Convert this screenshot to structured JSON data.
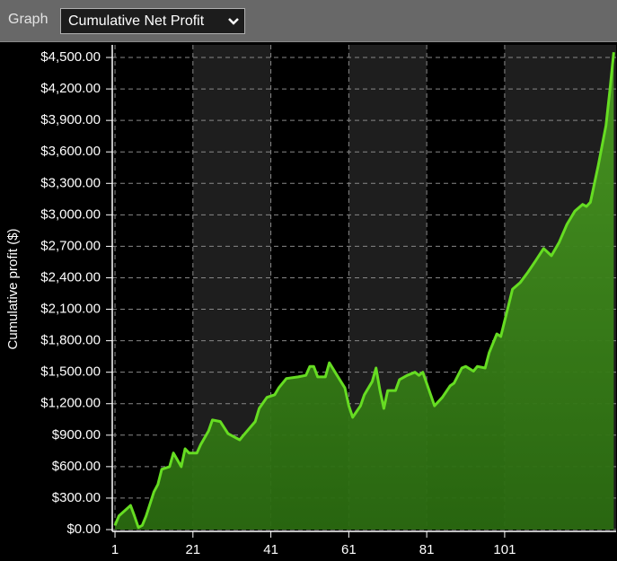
{
  "controls": {
    "label": "Graph",
    "selected": "Cumulative Net Profit"
  },
  "chart_data": {
    "type": "area",
    "y_label": "Cumulative profit ($)",
    "x": [
      1,
      2,
      5,
      6,
      7,
      8,
      9,
      11,
      12,
      13,
      15,
      16,
      18,
      19,
      20,
      22,
      23,
      25,
      26,
      28,
      30,
      33,
      34,
      37,
      38,
      40,
      42,
      43,
      45,
      48,
      50,
      51,
      52,
      53,
      55,
      56,
      58,
      60,
      61,
      62,
      64,
      65,
      67,
      68,
      69,
      70,
      71,
      73,
      74,
      76,
      78,
      79,
      80,
      82,
      83,
      85,
      87,
      88,
      90,
      91,
      93,
      94,
      96,
      97,
      99,
      100,
      102,
      103,
      105,
      107,
      109,
      111,
      113,
      115,
      117,
      119,
      121,
      122,
      123,
      125,
      127,
      128,
      129
    ],
    "series": [
      {
        "name": "Cumulative Net Profit",
        "color": "#66dd22",
        "fill": "#3c8a1a",
        "values": [
          40,
          130,
          230,
          130,
          20,
          40,
          130,
          360,
          430,
          575,
          600,
          730,
          600,
          770,
          730,
          730,
          810,
          940,
          1045,
          1030,
          915,
          855,
          900,
          1030,
          1155,
          1260,
          1285,
          1350,
          1440,
          1455,
          1470,
          1555,
          1555,
          1455,
          1455,
          1590,
          1470,
          1350,
          1180,
          1070,
          1180,
          1285,
          1410,
          1540,
          1325,
          1155,
          1325,
          1325,
          1430,
          1470,
          1500,
          1470,
          1500,
          1285,
          1180,
          1260,
          1370,
          1395,
          1540,
          1555,
          1510,
          1555,
          1540,
          1685,
          1865,
          1840,
          2140,
          2290,
          2355,
          2455,
          2565,
          2680,
          2610,
          2740,
          2910,
          3035,
          3100,
          3080,
          3120,
          3465,
          3850,
          4190,
          4550
        ]
      }
    ],
    "xlim": [
      0.3,
      129.6
    ],
    "xticks": [
      1,
      21,
      41,
      61,
      81,
      101
    ],
    "ylim": [
      0,
      4620
    ],
    "yticks": [
      {
        "value": 0,
        "label": "$0.00"
      },
      {
        "value": 300,
        "label": "$300.00"
      },
      {
        "value": 600,
        "label": "$600.00"
      },
      {
        "value": 900,
        "label": "$900.00"
      },
      {
        "value": 1200,
        "label": "$1,200.00"
      },
      {
        "value": 1500,
        "label": "$1,500.00"
      },
      {
        "value": 1800,
        "label": "$1,800.00"
      },
      {
        "value": 2100,
        "label": "$2,100.00"
      },
      {
        "value": 2400,
        "label": "$2,400.00"
      },
      {
        "value": 2700,
        "label": "$2,700.00"
      },
      {
        "value": 3000,
        "label": "$3,000.00"
      },
      {
        "value": 3300,
        "label": "$3,300.00"
      },
      {
        "value": 3600,
        "label": "$3,600.00"
      },
      {
        "value": 3900,
        "label": "$3,900.00"
      },
      {
        "value": 4200,
        "label": "$4,200.00"
      },
      {
        "value": 4500,
        "label": "$4,500.00"
      }
    ],
    "grid": true,
    "band_color": "#1e1e1e"
  }
}
